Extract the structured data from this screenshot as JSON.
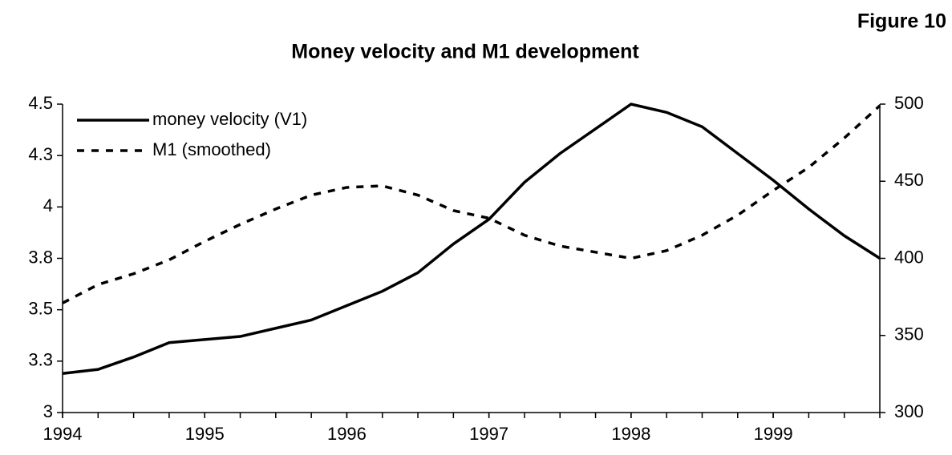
{
  "figure_label": "Figure 10",
  "chart_data": {
    "type": "line",
    "title": "Money velocity and M1 development",
    "x": [
      1994,
      1994.25,
      1994.5,
      1994.75,
      1995,
      1995.25,
      1995.5,
      1995.75,
      1996,
      1996.25,
      1996.5,
      1996.75,
      1997,
      1997.25,
      1997.5,
      1997.75,
      1998,
      1998.25,
      1998.5,
      1998.75,
      1999,
      1999.25,
      1999.5,
      1999.75
    ],
    "xlim": [
      1994,
      1999.75
    ],
    "xticks": [
      1994,
      1995,
      1996,
      1997,
      1998,
      1999
    ],
    "ylim": [
      3.0,
      4.5
    ],
    "yticks": [
      3,
      {
        "value": 3.25,
        "label": "3.3"
      },
      3.5,
      {
        "value": 3.75,
        "label": "3.8"
      },
      4,
      {
        "value": 4.25,
        "label": "4.3"
      },
      4.5
    ],
    "y2lim": [
      300,
      500
    ],
    "y2ticks": [
      300,
      350,
      400,
      450,
      500
    ],
    "legend": "upper left",
    "series": [
      {
        "name": "money velocity (V1)",
        "color": "#000000",
        "dash": "solid",
        "values": [
          3.19,
          3.21,
          3.27,
          3.34,
          3.355,
          3.37,
          3.41,
          3.45,
          3.52,
          3.59,
          3.68,
          3.82,
          3.94,
          4.12,
          4.26,
          4.38,
          4.5,
          4.46,
          4.39,
          4.26,
          4.13,
          3.99,
          3.86,
          3.75
        ]
      },
      {
        "name": "M1 (smoothed)",
        "color": "#000000",
        "dash": "dashed",
        "axis": "y2",
        "values": [
          371,
          383,
          390,
          399,
          411,
          422,
          432,
          441,
          446,
          447,
          441,
          431,
          426,
          415,
          408,
          404,
          400,
          405,
          415,
          428,
          444,
          459,
          478,
          499
        ]
      }
    ]
  }
}
